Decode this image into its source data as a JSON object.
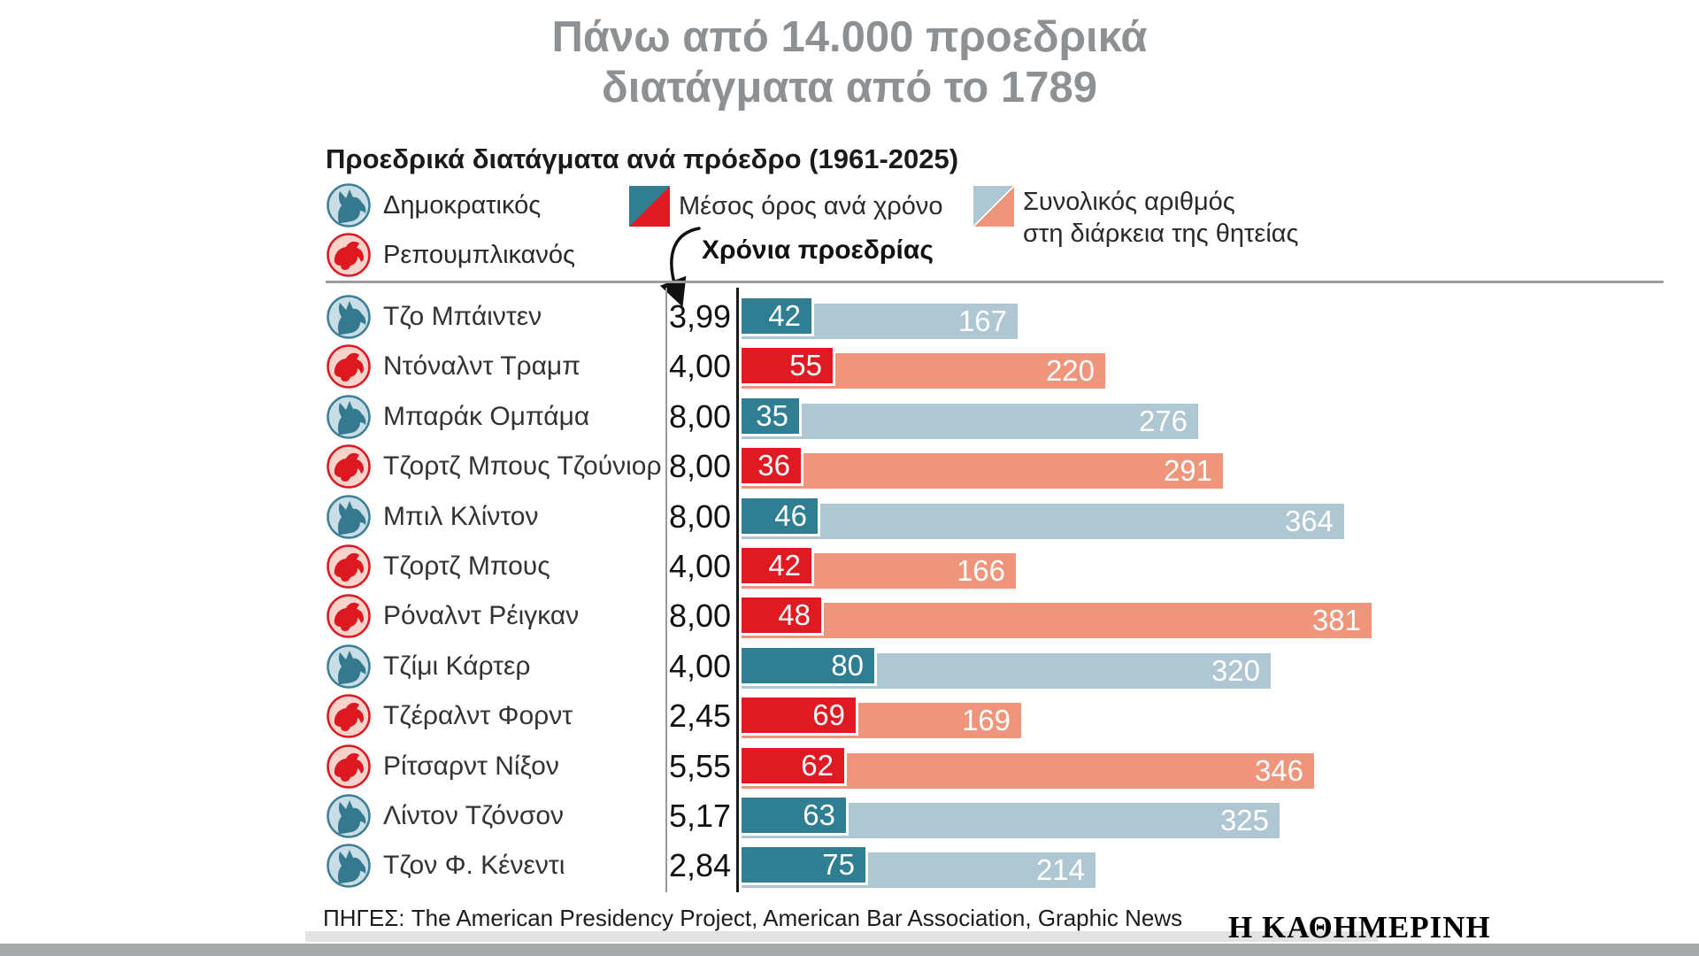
{
  "title": {
    "line1": "Πάνω από 14.000 προεδρικά",
    "line2": "διατάγματα από το 1789"
  },
  "subtitle": "Προεδρικά διατάγματα ανά πρόεδρο (1961-2025)",
  "legend": {
    "democrat_label": "Δημοκρατικός",
    "republican_label": "Ρεπουμπλικανός",
    "avg_label": "Μέσος όρος ανά χρόνο",
    "total_label_line1": "Συνολικός αριθμός",
    "total_label_line2": "στη διάρκεια της θητείας",
    "years_header": "Χρόνια προεδρίας",
    "icons": {
      "democrat": "donkey-icon",
      "republican": "elephant-icon"
    }
  },
  "colors": {
    "title_gray": "#8d9194",
    "democrat_dark": "#2f7e91",
    "democrat_light": "#aec7d2",
    "republican_dark": "#e01a22",
    "republican_light": "#ef957b",
    "democrat_badge_bg": "#c9dde7",
    "republican_badge_bg": "#f8d3cc",
    "line_gray": "#9b9b9b",
    "bar_label_white": "#ffffff"
  },
  "chart_data": {
    "type": "bar",
    "title": "Προεδρικά διατάγματα ανά πρόεδρο (1961-2025)",
    "orientation": "horizontal",
    "series": [
      {
        "name": "Μέσος όρος ανά χρόνο"
      },
      {
        "name": "Συνολικός αριθμός στη διάρκεια της θητείας"
      }
    ],
    "x_max": 381,
    "rows": [
      {
        "name": "Τζο Μπάιντεν",
        "party": "democrat",
        "years_display": "3,99",
        "years": 3.99,
        "avg_per_year": 42,
        "total": 167
      },
      {
        "name": "Ντόναλντ Τραμπ",
        "party": "republican",
        "years_display": "4,00",
        "years": 4.0,
        "avg_per_year": 55,
        "total": 220
      },
      {
        "name": "Μπαράκ Ομπάμα",
        "party": "democrat",
        "years_display": "8,00",
        "years": 8.0,
        "avg_per_year": 35,
        "total": 276
      },
      {
        "name": "Τζορτζ Μπους Τζούνιορ",
        "party": "republican",
        "years_display": "8,00",
        "years": 8.0,
        "avg_per_year": 36,
        "total": 291
      },
      {
        "name": "Μπιλ Κλίντον",
        "party": "democrat",
        "years_display": "8,00",
        "years": 8.0,
        "avg_per_year": 46,
        "total": 364
      },
      {
        "name": "Τζορτζ Μπους",
        "party": "republican",
        "years_display": "4,00",
        "years": 4.0,
        "avg_per_year": 42,
        "total": 166
      },
      {
        "name": "Ρόναλντ Ρέιγκαν",
        "party": "republican",
        "years_display": "8,00",
        "years": 8.0,
        "avg_per_year": 48,
        "total": 381
      },
      {
        "name": "Τζίμι Κάρτερ",
        "party": "democrat",
        "years_display": "4,00",
        "years": 4.0,
        "avg_per_year": 80,
        "total": 320
      },
      {
        "name": "Τζέραλντ Φορντ",
        "party": "republican",
        "years_display": "2,45",
        "years": 2.45,
        "avg_per_year": 69,
        "total": 169
      },
      {
        "name": "Ρίτσαρντ Νίξον",
        "party": "republican",
        "years_display": "5,55",
        "years": 5.55,
        "avg_per_year": 62,
        "total": 346
      },
      {
        "name": "Λίντον Τζόνσον",
        "party": "democrat",
        "years_display": "5,17",
        "years": 5.17,
        "avg_per_year": 63,
        "total": 325
      },
      {
        "name": "Τζον Φ. Κένεντι",
        "party": "democrat",
        "years_display": "2,84",
        "years": 2.84,
        "avg_per_year": 75,
        "total": 214
      }
    ]
  },
  "footer": {
    "sources": "ΠΗΓΕΣ: The American Presidency Project, American Bar Association, Graphic News",
    "logo": "Η ΚΑΘΗΜΕΡΙΝΗ"
  }
}
